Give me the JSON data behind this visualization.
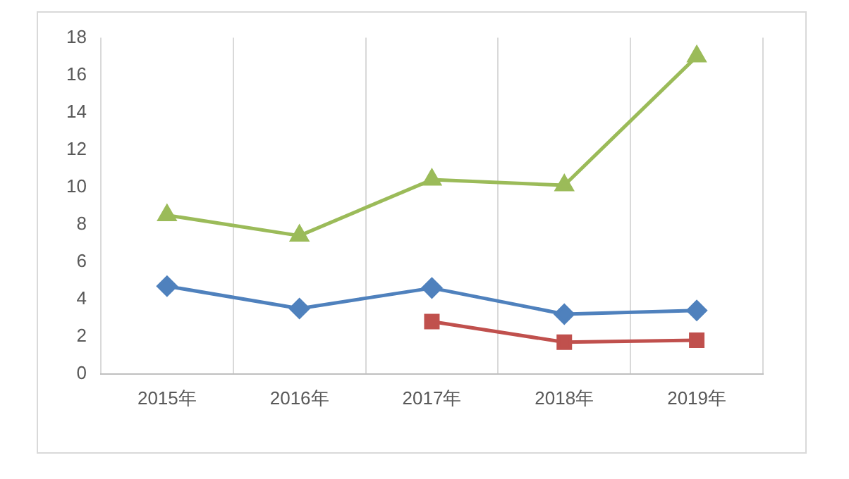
{
  "chart_data": {
    "type": "line",
    "categories": [
      "2015年",
      "2016年",
      "2017年",
      "2018年",
      "2019年"
    ],
    "series": [
      {
        "color": "#4f81bd",
        "marker": "diamond",
        "values": [
          4.7,
          3.5,
          4.6,
          3.2,
          3.4
        ]
      },
      {
        "color": "#c0504d",
        "marker": "square",
        "values": [
          null,
          null,
          2.8,
          1.7,
          1.8
        ]
      },
      {
        "color": "#9bbb59",
        "marker": "triangle",
        "values": [
          8.5,
          7.4,
          10.4,
          10.1,
          17
        ]
      }
    ],
    "ylim": [
      0,
      18
    ],
    "yticks": [
      0,
      2,
      4,
      6,
      8,
      10,
      12,
      14,
      16,
      18
    ],
    "grid": "x",
    "legend": false
  }
}
